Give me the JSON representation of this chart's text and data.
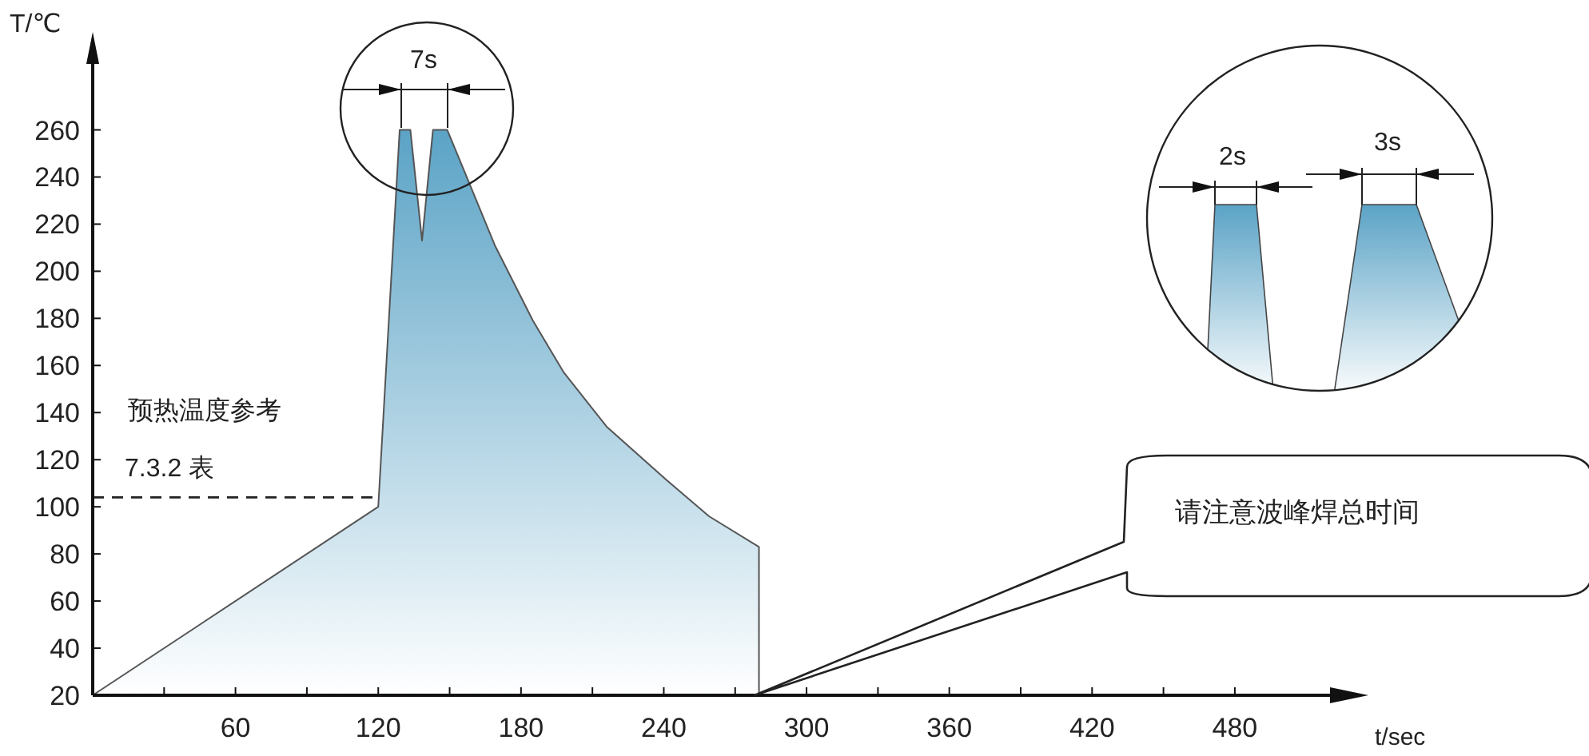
{
  "chart_data": {
    "type": "area",
    "xlabel": "t/sec",
    "ylabel": "T/℃",
    "x": [
      0,
      120,
      129,
      133.5,
      138.4,
      143,
      149,
      158,
      169,
      185,
      198,
      216,
      241,
      259,
      280,
      280
    ],
    "series": [
      {
        "color": "#5ba3c6",
        "values": [
          20,
          100,
          260,
          260,
          213,
          260,
          260,
          238,
          211,
          179,
          157,
          134,
          111.5,
          96,
          83,
          20
        ]
      }
    ],
    "xlim": [
      0,
      520
    ],
    "ylim": [
      20,
      288
    ],
    "xticks": [
      {
        "value": 30,
        "label": null
      },
      60,
      {
        "value": 90,
        "label": null
      },
      120,
      {
        "value": 150,
        "label": null
      },
      180,
      {
        "value": 210,
        "label": null
      },
      240,
      {
        "value": 270,
        "label": null
      },
      300,
      {
        "value": 330,
        "label": null
      },
      360,
      {
        "value": 390,
        "label": null
      },
      420,
      {
        "value": 450,
        "label": null
      },
      480
    ],
    "yticks": [
      20,
      40,
      60,
      80,
      100,
      120,
      140,
      160,
      180,
      200,
      220,
      240,
      260
    ],
    "ref_lines": [
      {
        "axis": "y",
        "value": 104,
        "color": "#222222",
        "line_style": "dashed"
      }
    ],
    "annotations": [
      {
        "text": "7s",
        "x": 129,
        "y": 260
      },
      "2s",
      "3s",
      "预热温度参考",
      "7.3.2 表",
      "请注意波峰焊总时间"
    ],
    "grid": false
  }
}
